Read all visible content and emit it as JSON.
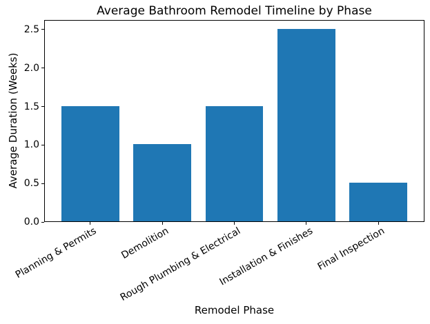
{
  "chart_data": {
    "type": "bar",
    "title": "Average Bathroom Remodel Timeline by Phase",
    "xlabel": "Remodel Phase",
    "ylabel": "Average Duration (Weeks)",
    "categories": [
      "Planning & Permits",
      "Demolition",
      "Rough Plumbing & Electrical",
      "Installation & Finishes",
      "Final Inspection"
    ],
    "values": [
      1.5,
      1.0,
      1.5,
      2.5,
      0.5
    ],
    "yticks": [
      0.0,
      0.5,
      1.0,
      1.5,
      2.0,
      2.5
    ],
    "ytick_labels": [
      "0.0",
      "0.5",
      "1.0",
      "1.5",
      "2.0",
      "2.5"
    ],
    "ylim": [
      0,
      2.625
    ],
    "xlim": [
      -0.64,
      4.64
    ],
    "bar_width_units": 0.8,
    "xtick_rotation_deg": 30,
    "bar_color": "#1f77b4",
    "axis_color": "#000000",
    "text_color": "#000000",
    "grid": false,
    "legend": "none"
  }
}
